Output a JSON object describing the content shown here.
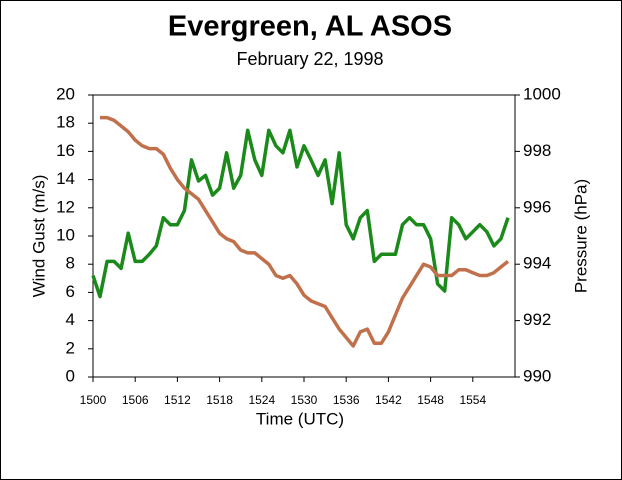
{
  "chart_data": {
    "type": "line",
    "title": "Evergreen, AL ASOS",
    "subtitle": "February 22, 1998",
    "x_label": "Time (UTC)",
    "y_label": "Wind Gust (m/s)",
    "y2_label": "Pressure (hPa)",
    "categories": [
      "1500",
      null,
      null,
      null,
      null,
      null,
      "1506",
      null,
      null,
      null,
      null,
      null,
      "1512",
      null,
      null,
      null,
      null,
      null,
      "1518",
      null,
      null,
      null,
      null,
      null,
      "1524",
      null,
      null,
      null,
      null,
      null,
      "1530",
      null,
      null,
      null,
      null,
      null,
      "1536",
      null,
      null,
      null,
      null,
      null,
      "1542",
      null,
      null,
      null,
      null,
      null,
      "1548",
      null,
      null,
      null,
      null,
      null,
      "1554",
      null,
      null,
      null,
      null,
      null
    ],
    "ylim": [
      0,
      20
    ],
    "yticks": [
      0,
      2,
      4,
      6,
      8,
      10,
      12,
      14,
      16,
      18,
      20
    ],
    "y2lim": [
      990,
      1000
    ],
    "y2ticks": [
      990,
      992,
      994,
      996,
      998,
      1000
    ],
    "series": [
      {
        "name": "Wind Gust",
        "color": "#1a8a1a",
        "values": [
          7.2,
          5.7,
          8.2,
          8.2,
          7.7,
          10.2,
          8.2,
          8.2,
          8.7,
          9.3,
          11.3,
          10.8,
          10.8,
          11.8,
          15.4,
          13.9,
          14.3,
          12.9,
          13.4,
          15.9,
          13.4,
          14.3,
          17.5,
          15.4,
          14.3,
          17.5,
          16.4,
          15.9,
          17.5,
          14.9,
          16.4,
          15.4,
          14.3,
          15.4,
          12.3,
          15.9,
          10.8,
          9.8,
          11.3,
          11.8,
          8.2,
          8.7,
          8.7,
          8.7,
          10.8,
          11.3,
          10.8,
          10.8,
          9.8,
          6.6,
          6.1,
          11.3,
          10.8,
          9.8,
          10.3,
          10.8,
          10.3,
          9.3,
          9.8,
          11.3
        ]
      },
      {
        "name": "Pressure",
        "color": "#c0704a",
        "axis": "y2",
        "values": [
          null,
          999.2,
          999.2,
          999.1,
          998.9,
          998.7,
          998.4,
          998.2,
          998.1,
          998.1,
          997.9,
          997.4,
          997.0,
          996.7,
          996.5,
          996.3,
          995.9,
          995.5,
          995.1,
          994.9,
          994.8,
          994.5,
          994.4,
          994.4,
          994.2,
          994.0,
          993.6,
          993.5,
          993.6,
          993.3,
          992.9,
          992.7,
          992.6,
          992.5,
          992.1,
          991.7,
          991.4,
          991.1,
          991.6,
          991.7,
          991.2,
          991.2,
          991.6,
          992.2,
          992.8,
          993.2,
          993.6,
          994.0,
          993.9,
          993.6,
          993.6,
          993.6,
          993.8,
          993.8,
          993.7,
          993.6,
          993.6,
          993.7,
          993.9,
          994.1
        ]
      }
    ]
  }
}
